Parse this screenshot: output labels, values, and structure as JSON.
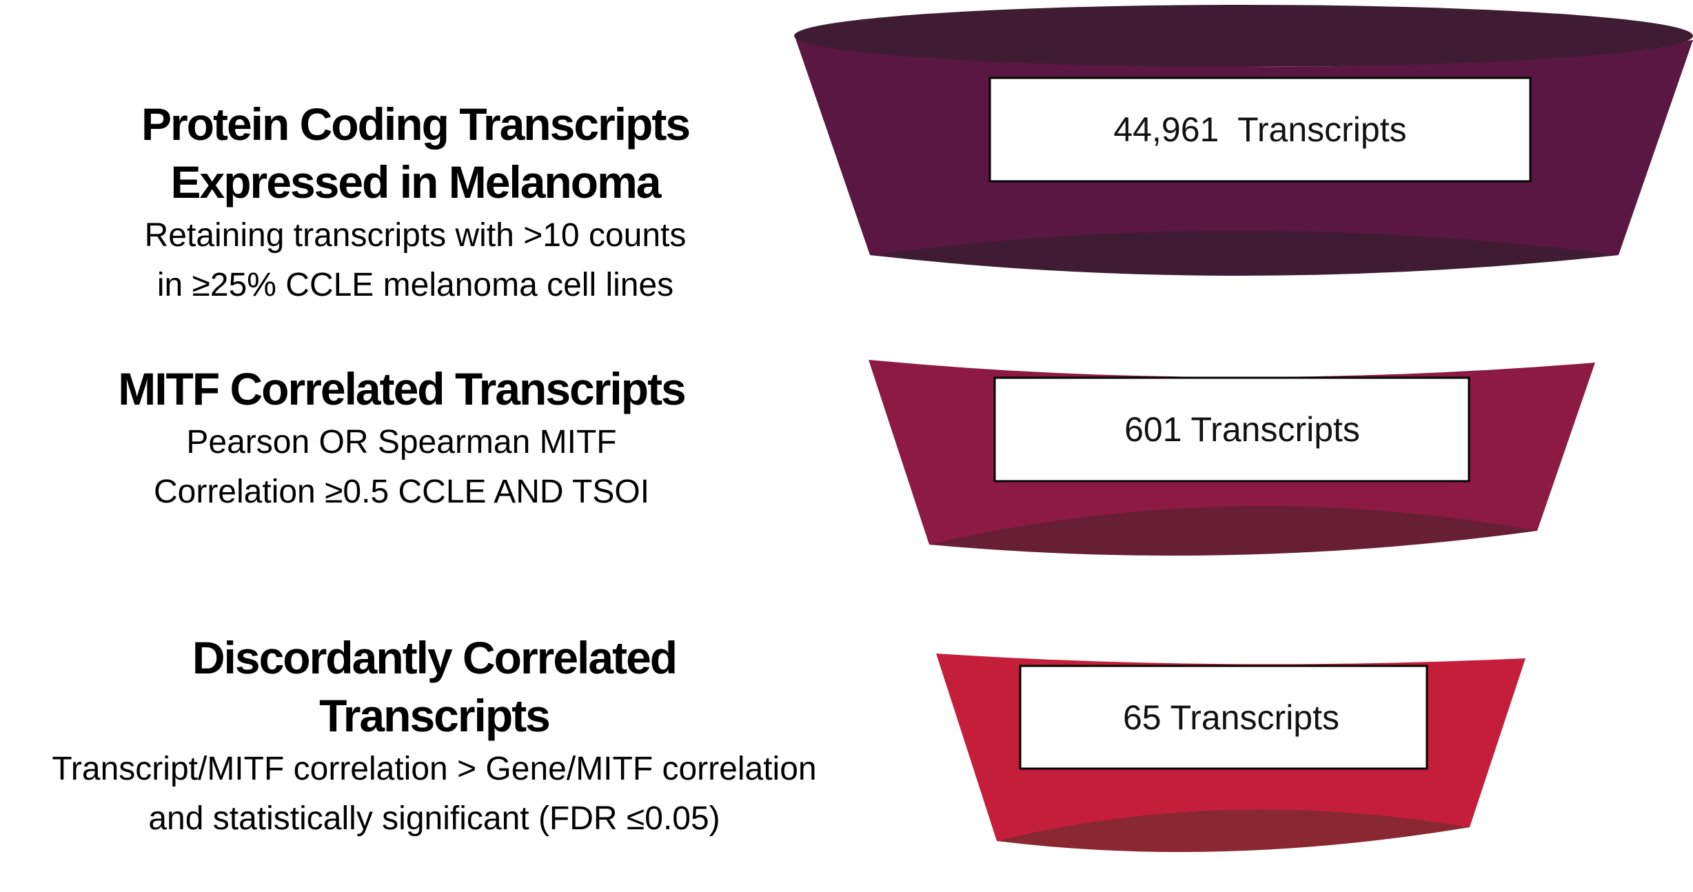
{
  "stages": [
    {
      "title_line1": "Protein Coding Transcripts",
      "title_line2": "Expressed in Melanoma",
      "desc_line1": "Retaining transcripts with >10 counts",
      "desc_line2": "in ≥25% CCLE melanoma cell lines",
      "count_label": "44,961  Transcripts",
      "count": 44961,
      "color_body": "#5a1742",
      "color_rim": "#3f1c33"
    },
    {
      "title_line1": "MITF Correlated Transcripts",
      "desc_line1": "Pearson OR Spearman MITF",
      "desc_line2": "Correlation ≥0.5 CCLE AND TSOI",
      "count_label": "601 Transcripts",
      "count": 601,
      "color_body": "#8c1a42",
      "color_rim": "#661f35"
    },
    {
      "title_line1": "Discordantly Correlated",
      "title_line2": "Transcripts",
      "desc_line1": "Transcript/MITF correlation > Gene/MITF correlation",
      "desc_line2": "and statistically significant (FDR ≤0.05)",
      "count_label": "65 Transcripts",
      "count": 65,
      "color_body": "#c41e3a",
      "color_rim": "#8a2832"
    }
  ]
}
